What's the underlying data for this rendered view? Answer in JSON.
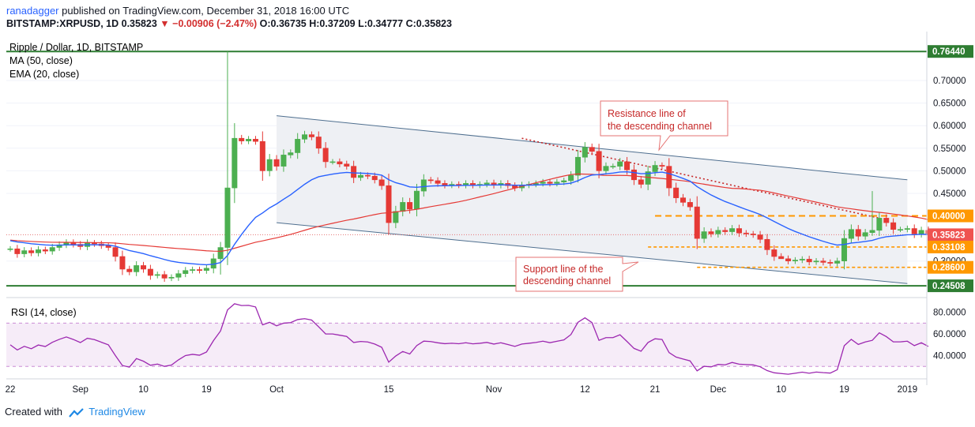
{
  "header": {
    "author": "ranadagger",
    "published": "published on TradingView.com, December 31, 2018 16:00 UTC",
    "symbol": "BITSTAMP:XRPUSD, 1D",
    "price": "0.35823",
    "change_arrow": "▼",
    "change": "−0.00906 (−2.47%)",
    "open": "O:0.36735",
    "high": "H:0.37209",
    "low": "L:0.34777",
    "close": "C:0.35823"
  },
  "legend": {
    "title": "Ripple / Dollar, 1D, BITSTAMP",
    "ma": "MA (50, close)",
    "ema": "EMA (20, close)"
  },
  "rsi_legend": "RSI (14, close)",
  "footer": {
    "created_with": "Created with",
    "brand": "TradingView"
  },
  "colors": {
    "up": "#26a69a",
    "down": "#ef5350",
    "candle_up": "#4caf50",
    "candle_down": "#e53935",
    "ma50": "#e53935",
    "ema20": "#2962ff",
    "orange": "#ff9800",
    "green_line": "#2e7d32",
    "rsi": "#9c27b0",
    "annotation_border": "#e57373",
    "annotation_text": "#c62828",
    "channel": "#4f6f8f",
    "channel_fill": "#eef0f4"
  },
  "annotations": {
    "resistance": [
      "Resistance line of",
      "the descending channel"
    ],
    "support": [
      "Support line of the",
      "descending channel"
    ]
  },
  "chart_data": {
    "type": "candlestick",
    "x_labels": [
      "22",
      "Sep",
      "10",
      "19",
      "Oct",
      "15",
      "Nov",
      "12",
      "21",
      "Dec",
      "10",
      "19",
      "2019"
    ],
    "y_ticks": [
      "0.70000",
      "0.65000",
      "0.60000",
      "0.55000",
      "0.50000",
      "0.45000",
      "0.30000"
    ],
    "ylim": [
      0.24,
      0.77
    ],
    "price_labels": [
      "0.76440",
      "0.40000",
      "0.35823",
      "0.33108",
      "0.28600",
      "0.24508"
    ],
    "levels": {
      "top": 0.7644,
      "resistance": 0.4,
      "current": 0.35823,
      "support1": 0.33108,
      "support2": 0.286,
      "bottom": 0.24508
    },
    "closes": [
      0.327,
      0.316,
      0.323,
      0.318,
      0.325,
      0.322,
      0.33,
      0.336,
      0.341,
      0.337,
      0.332,
      0.34,
      0.338,
      0.334,
      0.33,
      0.31,
      0.282,
      0.276,
      0.29,
      0.282,
      0.268,
      0.27,
      0.262,
      0.264,
      0.272,
      0.279,
      0.281,
      0.279,
      0.284,
      0.305,
      0.33,
      0.462,
      0.572,
      0.566,
      0.57,
      0.565,
      0.5,
      0.525,
      0.51,
      0.535,
      0.54,
      0.57,
      0.58,
      0.575,
      0.55,
      0.52,
      0.52,
      0.515,
      0.51,
      0.485,
      0.49,
      0.488,
      0.48,
      0.467,
      0.385,
      0.41,
      0.43,
      0.415,
      0.455,
      0.48,
      0.478,
      0.472,
      0.468,
      0.47,
      0.468,
      0.472,
      0.468,
      0.47,
      0.473,
      0.468,
      0.472,
      0.467,
      0.462,
      0.468,
      0.47,
      0.472,
      0.475,
      0.472,
      0.475,
      0.478,
      0.49,
      0.53,
      0.552,
      0.543,
      0.5,
      0.51,
      0.51,
      0.52,
      0.502,
      0.48,
      0.47,
      0.498,
      0.512,
      0.51,
      0.462,
      0.44,
      0.43,
      0.42,
      0.35,
      0.365,
      0.36,
      0.368,
      0.365,
      0.372,
      0.362,
      0.36,
      0.358,
      0.348,
      0.325,
      0.31,
      0.305,
      0.3,
      0.302,
      0.304,
      0.298,
      0.3,
      0.297,
      0.295,
      0.3,
      0.35,
      0.37,
      0.355,
      0.363,
      0.368,
      0.395,
      0.385,
      0.37,
      0.37,
      0.372,
      0.36,
      0.368,
      0.358
    ],
    "rsi": {
      "ylim": [
        20,
        90
      ],
      "ticks": [
        "80.0000",
        "60.0000",
        "40.0000"
      ],
      "band": [
        30,
        70
      ]
    }
  }
}
